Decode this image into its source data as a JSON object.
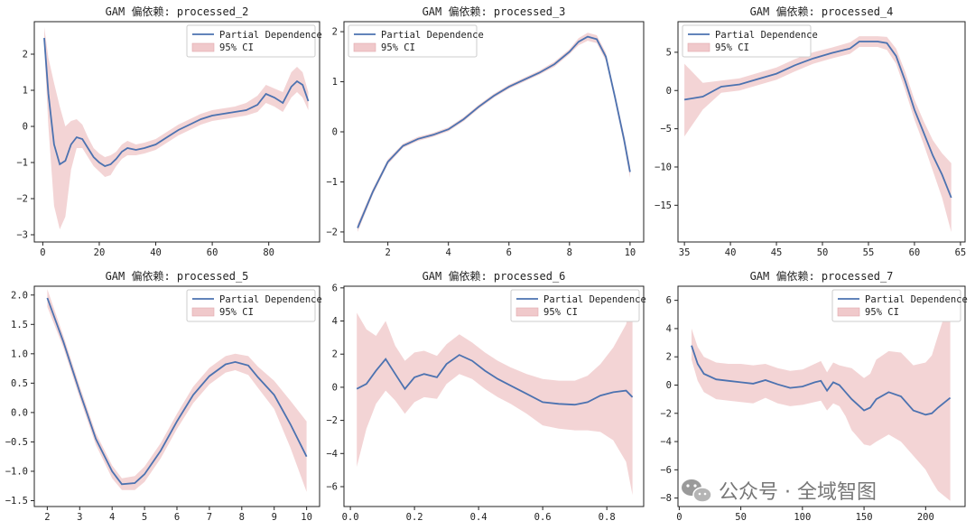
{
  "watermark": {
    "text": "公众号 · 全域智图"
  },
  "chart_data": [
    {
      "type": "line",
      "title": "GAM 偏依赖: processed_2",
      "legend": [
        "Partial Dependence",
        "95% CI"
      ],
      "legend_position": "top-right",
      "xlim": [
        -3,
        98
      ],
      "ylim": [
        -3.2,
        2.9
      ],
      "xticks": [
        0,
        20,
        40,
        60,
        80
      ],
      "yticks": [
        -3,
        -2,
        -1,
        0,
        1,
        2
      ],
      "series": [
        {
          "name": "Partial Dependence",
          "x": [
            0.5,
            2,
            4,
            6,
            8,
            10,
            12,
            14,
            16,
            18,
            20,
            22,
            24,
            26,
            28,
            30,
            33,
            36,
            40,
            44,
            48,
            52,
            56,
            60,
            64,
            68,
            72,
            76,
            79,
            82,
            85,
            88,
            90,
            92,
            94
          ],
          "y": [
            2.45,
            0.9,
            -0.5,
            -1.05,
            -0.95,
            -0.5,
            -0.3,
            -0.35,
            -0.6,
            -0.85,
            -1.0,
            -1.1,
            -1.05,
            -0.9,
            -0.7,
            -0.6,
            -0.65,
            -0.6,
            -0.5,
            -0.3,
            -0.1,
            0.05,
            0.2,
            0.3,
            0.35,
            0.4,
            0.45,
            0.6,
            0.9,
            0.8,
            0.65,
            1.1,
            1.25,
            1.15,
            0.7
          ],
          "lower": [
            2.2,
            0.0,
            -2.2,
            -2.85,
            -2.5,
            -1.2,
            -0.6,
            -0.6,
            -0.85,
            -1.1,
            -1.25,
            -1.4,
            -1.35,
            -1.1,
            -0.9,
            -0.8,
            -0.8,
            -0.75,
            -0.65,
            -0.45,
            -0.25,
            -0.1,
            0.05,
            0.15,
            0.2,
            0.25,
            0.3,
            0.4,
            0.65,
            0.55,
            0.4,
            0.8,
            0.95,
            0.8,
            0.45
          ],
          "upper": [
            2.75,
            1.9,
            1.2,
            0.55,
            0.0,
            0.15,
            0.2,
            0.05,
            -0.3,
            -0.6,
            -0.75,
            -0.85,
            -0.8,
            -0.7,
            -0.5,
            -0.4,
            -0.5,
            -0.45,
            -0.35,
            -0.15,
            0.05,
            0.2,
            0.35,
            0.45,
            0.5,
            0.55,
            0.65,
            0.85,
            1.15,
            1.05,
            0.95,
            1.5,
            1.65,
            1.5,
            0.95
          ]
        }
      ]
    },
    {
      "type": "line",
      "title": "GAM 偏依赖: processed_3",
      "legend": [
        "Partial Dependence",
        "95% CI"
      ],
      "legend_position": "top-left",
      "xlim": [
        0.55,
        10.45
      ],
      "ylim": [
        -2.2,
        2.2
      ],
      "xticks": [
        2,
        4,
        6,
        8,
        10
      ],
      "yticks": [
        -2,
        -1,
        0,
        1,
        2
      ],
      "series": [
        {
          "name": "Partial Dependence",
          "x": [
            1,
            1.5,
            2,
            2.5,
            3,
            3.5,
            4,
            4.5,
            5,
            5.5,
            6,
            6.5,
            7,
            7.5,
            8,
            8.3,
            8.6,
            8.9,
            9.2,
            9.5,
            9.8,
            10
          ],
          "y": [
            -1.92,
            -1.2,
            -0.6,
            -0.28,
            -0.14,
            -0.06,
            0.05,
            0.25,
            0.5,
            0.72,
            0.9,
            1.04,
            1.18,
            1.35,
            1.6,
            1.8,
            1.9,
            1.85,
            1.5,
            0.7,
            -0.15,
            -0.8
          ],
          "lower": [
            -2.0,
            -1.26,
            -0.65,
            -0.32,
            -0.18,
            -0.1,
            0.01,
            0.21,
            0.46,
            0.68,
            0.86,
            1.0,
            1.14,
            1.3,
            1.55,
            1.73,
            1.82,
            1.77,
            1.42,
            0.62,
            -0.25,
            -0.92
          ],
          "upper": [
            -1.84,
            -1.14,
            -0.55,
            -0.24,
            -0.1,
            -0.02,
            0.09,
            0.29,
            0.54,
            0.76,
            0.94,
            1.08,
            1.22,
            1.4,
            1.65,
            1.87,
            1.98,
            1.93,
            1.58,
            0.78,
            -0.05,
            -0.68
          ]
        }
      ]
    },
    {
      "type": "line",
      "title": "GAM 偏依赖: processed_4",
      "legend": [
        "Partial Dependence",
        "95% CI"
      ],
      "legend_position": "top-left",
      "xlim": [
        34.3,
        65.5
      ],
      "ylim": [
        -19.8,
        9.0
      ],
      "xticks": [
        35,
        40,
        45,
        50,
        55,
        60,
        65
      ],
      "yticks": [
        -15,
        -10,
        -5,
        0,
        5
      ],
      "series": [
        {
          "name": "Partial Dependence",
          "x": [
            35,
            37,
            39,
            41,
            43,
            45,
            47,
            49,
            51,
            53,
            54,
            56,
            57,
            58,
            59,
            60,
            61,
            62,
            63,
            64
          ],
          "y": [
            -1.2,
            -0.8,
            0.5,
            0.8,
            1.5,
            2.2,
            3.3,
            4.2,
            4.9,
            5.5,
            6.4,
            6.4,
            6.2,
            4.5,
            1.2,
            -2.5,
            -5.5,
            -8.5,
            -11.0,
            -14.0
          ],
          "lower": [
            -6.0,
            -2.5,
            -0.3,
            0.0,
            0.7,
            1.4,
            2.5,
            3.5,
            4.2,
            4.8,
            5.7,
            5.7,
            5.3,
            3.5,
            0.0,
            -3.8,
            -7.0,
            -10.5,
            -14.0,
            -18.5
          ],
          "upper": [
            3.5,
            1.0,
            1.3,
            1.6,
            2.3,
            3.0,
            4.1,
            5.0,
            5.6,
            6.3,
            7.1,
            7.1,
            7.0,
            5.5,
            2.4,
            -1.2,
            -4.0,
            -6.5,
            -8.2,
            -9.5
          ]
        }
      ]
    },
    {
      "type": "line",
      "title": "GAM 偏依赖: processed_5",
      "legend": [
        "Partial Dependence",
        "95% CI"
      ],
      "legend_position": "top-right",
      "xlim": [
        1.6,
        10.4
      ],
      "ylim": [
        -1.6,
        2.15
      ],
      "xticks": [
        2,
        3,
        4,
        5,
        6,
        7,
        8,
        9,
        10
      ],
      "yticks": [
        -1.5,
        -1.0,
        -0.5,
        0.0,
        0.5,
        1.0,
        1.5,
        2.0
      ],
      "tick_labels_y": [
        "−1.5",
        "−1.0",
        "−0.5",
        "0.0",
        "0.5",
        "1.0",
        "1.5",
        "2.0"
      ],
      "series": [
        {
          "name": "Partial Dependence",
          "x": [
            2,
            2.5,
            3,
            3.5,
            4,
            4.3,
            4.7,
            5,
            5.5,
            6,
            6.5,
            7,
            7.5,
            7.8,
            8.2,
            8.5,
            9,
            9.5,
            10
          ],
          "y": [
            1.95,
            1.2,
            0.35,
            -0.45,
            -1.0,
            -1.22,
            -1.2,
            -1.05,
            -0.65,
            -0.15,
            0.3,
            0.62,
            0.82,
            0.86,
            0.8,
            0.6,
            0.3,
            -0.2,
            -0.75
          ],
          "lower": [
            1.8,
            1.1,
            0.25,
            -0.55,
            -1.12,
            -1.32,
            -1.32,
            -1.18,
            -0.78,
            -0.28,
            0.16,
            0.48,
            0.68,
            0.72,
            0.64,
            0.42,
            0.06,
            -0.6,
            -1.35
          ],
          "upper": [
            2.1,
            1.3,
            0.45,
            -0.35,
            -0.9,
            -1.12,
            -1.08,
            -0.92,
            -0.52,
            -0.02,
            0.44,
            0.76,
            0.96,
            1.0,
            0.96,
            0.78,
            0.54,
            0.2,
            -0.15
          ]
        }
      ]
    },
    {
      "type": "line",
      "title": "GAM 偏依赖: processed_6",
      "legend": [
        "Partial Dependence",
        "95% CI"
      ],
      "legend_position": "top-right",
      "xlim": [
        -0.02,
        0.915
      ],
      "ylim": [
        -7.2,
        6.1
      ],
      "xticks": [
        0.0,
        0.2,
        0.4,
        0.6,
        0.8
      ],
      "yticks": [
        -6,
        -4,
        -2,
        0,
        2,
        4,
        6
      ],
      "tick_labels_x": [
        "0.0",
        "0.2",
        "0.4",
        "0.6",
        "0.8"
      ],
      "series": [
        {
          "name": "Partial Dependence",
          "x": [
            0.02,
            0.05,
            0.08,
            0.11,
            0.14,
            0.17,
            0.2,
            0.23,
            0.27,
            0.3,
            0.34,
            0.38,
            0.42,
            0.46,
            0.5,
            0.55,
            0.6,
            0.65,
            0.7,
            0.74,
            0.78,
            0.82,
            0.86,
            0.88
          ],
          "y": [
            -0.1,
            0.2,
            1.0,
            1.7,
            0.8,
            -0.1,
            0.6,
            0.8,
            0.6,
            1.4,
            1.95,
            1.6,
            1.0,
            0.5,
            0.1,
            -0.4,
            -0.9,
            -1.0,
            -1.05,
            -0.9,
            -0.5,
            -0.3,
            -0.2,
            -0.6
          ],
          "lower": [
            -4.8,
            -2.5,
            -1.0,
            -0.2,
            -0.8,
            -1.6,
            -0.9,
            -0.6,
            -0.7,
            0.2,
            0.8,
            0.5,
            -0.1,
            -0.6,
            -1.0,
            -1.6,
            -2.3,
            -2.5,
            -2.6,
            -2.6,
            -2.7,
            -3.2,
            -4.5,
            -6.5
          ],
          "upper": [
            4.5,
            3.5,
            3.1,
            4.0,
            2.5,
            1.6,
            2.1,
            2.2,
            1.9,
            2.6,
            3.2,
            2.7,
            2.1,
            1.6,
            1.2,
            0.8,
            0.5,
            0.4,
            0.4,
            0.7,
            1.4,
            2.4,
            3.8,
            5.5
          ]
        }
      ]
    },
    {
      "type": "line",
      "title": "GAM 偏依赖: processed_7",
      "legend": [
        "Partial Dependence",
        "95% CI"
      ],
      "legend_position": "top-right",
      "xlim": [
        -1,
        232
      ],
      "ylim": [
        -8.6,
        7.0
      ],
      "xticks": [
        0,
        50,
        100,
        150,
        200
      ],
      "yticks": [
        -8,
        -6,
        -4,
        -2,
        0,
        2,
        4,
        6
      ],
      "series": [
        {
          "name": "Partial Dependence",
          "x": [
            10,
            15,
            20,
            30,
            40,
            50,
            60,
            70,
            80,
            90,
            100,
            110,
            115,
            120,
            125,
            130,
            135,
            140,
            150,
            155,
            160,
            170,
            180,
            190,
            200,
            205,
            210,
            220
          ],
          "y": [
            2.8,
            1.5,
            0.8,
            0.4,
            0.3,
            0.2,
            0.1,
            0.35,
            0.05,
            -0.2,
            -0.1,
            0.2,
            0.3,
            -0.4,
            0.2,
            0.0,
            -0.5,
            -1.0,
            -1.8,
            -1.6,
            -1.0,
            -0.5,
            -0.8,
            -1.8,
            -2.1,
            -2.0,
            -1.6,
            -0.9
          ],
          "lower": [
            1.8,
            0.3,
            -0.5,
            -1.0,
            -1.1,
            -1.2,
            -1.3,
            -0.9,
            -1.3,
            -1.5,
            -1.4,
            -1.2,
            -1.1,
            -1.8,
            -1.3,
            -1.5,
            -2.2,
            -3.2,
            -4.2,
            -4.3,
            -4.0,
            -3.5,
            -4.0,
            -5.0,
            -6.0,
            -6.8,
            -7.5,
            -8.2
          ],
          "upper": [
            4.0,
            2.7,
            2.0,
            1.6,
            1.5,
            1.5,
            1.4,
            1.5,
            1.2,
            1.0,
            1.1,
            1.5,
            1.7,
            0.9,
            1.6,
            1.4,
            1.3,
            1.2,
            0.5,
            0.8,
            1.8,
            2.4,
            2.3,
            1.4,
            1.6,
            2.1,
            3.5,
            6.2
          ]
        }
      ]
    }
  ]
}
